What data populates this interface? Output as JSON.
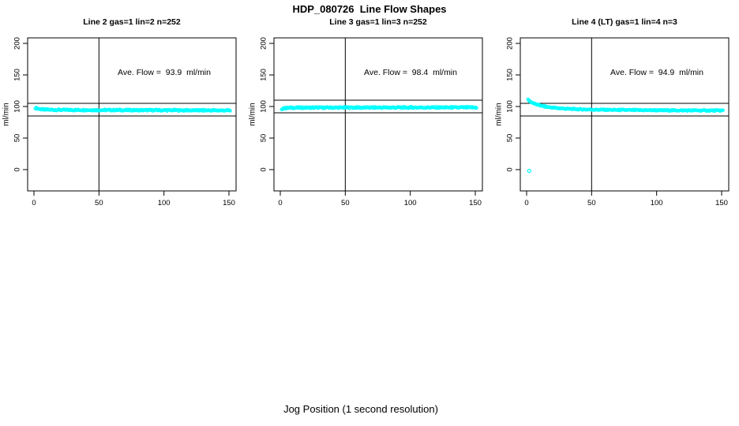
{
  "chart_data": {
    "type": "scatter",
    "title": "HDP_080726  Line Flow Shapes",
    "xlabel": "Jog Position (1 second resolution)",
    "ylabel": "ml/min",
    "x_ticks": [
      0,
      50,
      100,
      150
    ],
    "y_ticks": [
      0,
      50,
      100,
      150,
      200
    ],
    "xlim": [
      0,
      150
    ],
    "ylim": [
      -30,
      205
    ],
    "grid": false,
    "point_color": "#00FFFF",
    "line_color": "#000000",
    "panels": [
      {
        "title": "Line 2 gas=1 lin=2 n=252",
        "annotation": "Ave. Flow =  93.9  ml/min",
        "ave_flow_ml_min": 93.9,
        "n": 252,
        "vline_x": 50,
        "hlines": [
          105,
          85
        ],
        "series": [
          {
            "name": "flow",
            "marker": "open-circle",
            "color": "#00FFFF",
            "n_markers": 252,
            "x_range": [
              1,
              151
            ],
            "band_halfwidth": 1.1,
            "profile": [
              [
                1,
                97.8
              ],
              [
                2,
                97.2
              ],
              [
                4,
                96.2
              ],
              [
                6,
                95.5
              ],
              [
                9,
                95.0
              ],
              [
                15,
                94.7
              ],
              [
                30,
                94.5
              ],
              [
                60,
                94.3
              ],
              [
                100,
                94.1
              ],
              [
                130,
                93.9
              ],
              [
                151,
                93.7
              ]
            ]
          }
        ],
        "outliers": []
      },
      {
        "title": "Line 3 gas=1 lin=3 n=252",
        "annotation": "Ave. Flow =  98.4  ml/min",
        "ave_flow_ml_min": 98.4,
        "n": 252,
        "vline_x": 50,
        "hlines": [
          110,
          90
        ],
        "series": [
          {
            "name": "flow",
            "marker": "open-circle",
            "color": "#00FFFF",
            "n_markers": 252,
            "x_range": [
              1,
              151
            ],
            "band_halfwidth": 1.1,
            "profile": [
              [
                1,
                96.2
              ],
              [
                2,
                97.0
              ],
              [
                4,
                97.6
              ],
              [
                8,
                98.0
              ],
              [
                20,
                98.2
              ],
              [
                60,
                98.3
              ],
              [
                100,
                98.4
              ],
              [
                151,
                98.5
              ]
            ]
          }
        ],
        "outliers": []
      },
      {
        "title": "Line 4 (LT) gas=1 lin=4 n=3",
        "annotation": "Ave. Flow =  94.9  ml/min",
        "ave_flow_ml_min": 94.9,
        "n": 3,
        "vline_x": 50,
        "hlines": [
          105,
          85
        ],
        "series": [
          {
            "name": "flow",
            "marker": "open-circle",
            "color": "#00FFFF",
            "n_markers": 260,
            "x_range": [
              1,
              151
            ],
            "band_halfwidth": 0.9,
            "profile": [
              [
                1,
                110.5
              ],
              [
                3,
                107.5
              ],
              [
                5,
                105.5
              ],
              [
                8,
                103.0
              ],
              [
                12,
                100.8
              ],
              [
                16,
                99.2
              ],
              [
                22,
                97.8
              ],
              [
                30,
                96.5
              ],
              [
                40,
                95.6
              ],
              [
                55,
                94.9
              ],
              [
                80,
                94.3
              ],
              [
                110,
                93.9
              ],
              [
                151,
                93.6
              ]
            ]
          }
        ],
        "outliers": [
          [
            2,
            -2
          ]
        ]
      }
    ]
  }
}
